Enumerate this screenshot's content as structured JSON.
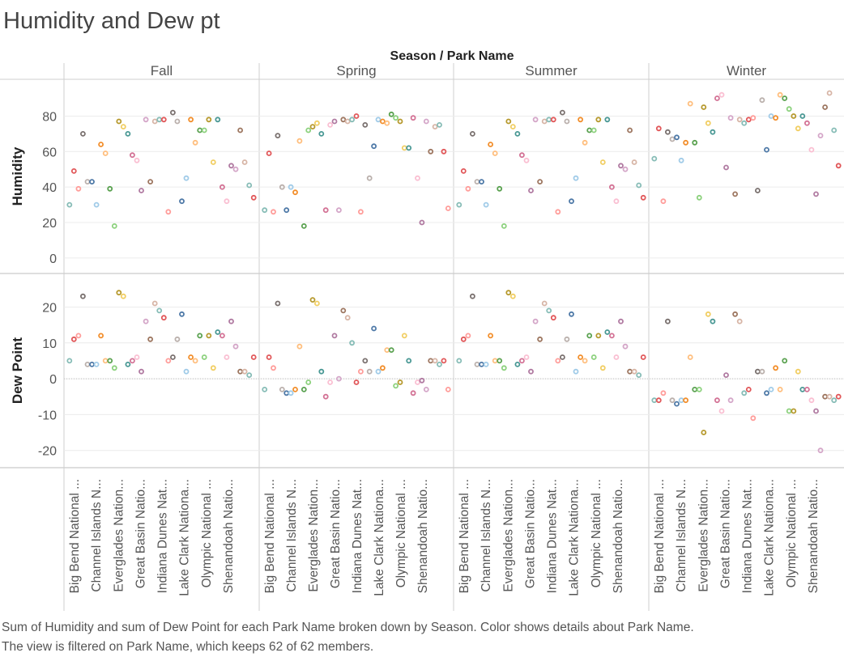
{
  "page": {
    "title": "Humidity and Dew pt",
    "caption_line1": "Sum of Humidity and sum of Dew Point for each Park Name broken down by Season.  Color shows details about Park Name.",
    "caption_line2": "The view is filtered on Park Name, which keeps 62 of 62 members."
  },
  "chart_data": {
    "type": "scatter",
    "header": "Season  /  Park Name",
    "columns": [
      "Fall",
      "Spring",
      "Summer",
      "Winter"
    ],
    "rows": [
      {
        "name": "Humidity",
        "ylim": [
          -6,
          98
        ],
        "ticks": [
          0,
          20,
          40,
          60,
          80
        ]
      },
      {
        "name": "Dew Point",
        "ylim": [
          -23,
          28
        ],
        "ticks": [
          -20,
          -10,
          0,
          10,
          20
        ]
      }
    ],
    "park_labels": [
      "Big Bend National ...",
      "Channel Islands N...",
      "Everglades Nation...",
      "Great Basin Natio...",
      "Indiana Dunes Nat...",
      "Lake Clark Nationa...",
      "Olympic National ...",
      "Shenandoah Natio..."
    ],
    "palette": [
      "#86bcb6",
      "#e15759",
      "#ff9d9a",
      "#79706e",
      "#bab0ac",
      "#4e79a7",
      "#a0cbe8",
      "#f28e2b",
      "#ffbe7d",
      "#59a14f",
      "#8cd17d",
      "#b6992d",
      "#f1ce63",
      "#499894",
      "#d37295",
      "#fabfd2",
      "#b07aa1",
      "#d4a6c8",
      "#9d7660",
      "#d7b5a6"
    ],
    "series": [
      {
        "season": "Fall",
        "humidity": [
          30,
          49,
          39,
          70,
          43,
          43,
          30,
          64,
          59,
          39,
          18,
          77,
          74,
          70,
          58,
          55,
          38,
          78,
          43,
          77,
          78,
          78,
          26,
          82,
          77,
          32,
          45,
          78,
          65,
          72,
          72,
          78,
          54,
          78,
          40,
          32,
          52,
          50,
          72,
          54,
          41,
          34
        ],
        "dew_point": [
          5,
          11,
          12,
          23,
          4,
          4,
          4,
          12,
          5,
          5,
          3,
          24,
          23,
          4,
          5,
          6,
          2,
          16,
          11,
          21,
          19,
          17,
          5,
          6,
          11,
          18,
          2,
          6,
          5,
          12,
          6,
          12,
          3,
          13,
          12,
          6,
          16,
          9,
          2,
          2,
          1,
          6
        ]
      },
      {
        "season": "Spring",
        "humidity": [
          27,
          59,
          26,
          69,
          40,
          27,
          40,
          37,
          66,
          18,
          72,
          74,
          76,
          70,
          27,
          75,
          77,
          27,
          78,
          77,
          78,
          80,
          26,
          75,
          45,
          63,
          78,
          77,
          76,
          81,
          79,
          77,
          62,
          62,
          79,
          45,
          20,
          77,
          60,
          74,
          75,
          60,
          28
        ],
        "dew_point": [
          -3,
          6,
          3,
          21,
          -3,
          -4,
          -4,
          -3,
          9,
          -3,
          -1,
          22,
          21,
          2,
          -5,
          -1,
          12,
          0,
          19,
          17,
          10,
          -1,
          2,
          5,
          2,
          14,
          2,
          3,
          8,
          8,
          -2,
          -1,
          12,
          5,
          -4,
          -1,
          -0.5,
          -3,
          5,
          5,
          4,
          5,
          -3
        ]
      },
      {
        "season": "Summer",
        "humidity": [
          30,
          49,
          39,
          70,
          43,
          43,
          30,
          64,
          59,
          39,
          18,
          77,
          74,
          70,
          58,
          55,
          38,
          78,
          43,
          77,
          78,
          78,
          26,
          82,
          77,
          32,
          45,
          78,
          65,
          72,
          72,
          78,
          54,
          78,
          40,
          32,
          52,
          50,
          72,
          54,
          41,
          34
        ],
        "dew_point": [
          5,
          11,
          12,
          23,
          4,
          4,
          4,
          12,
          5,
          5,
          3,
          24,
          23,
          4,
          5,
          6,
          2,
          16,
          11,
          21,
          19,
          17,
          5,
          6,
          11,
          18,
          2,
          6,
          5,
          12,
          6,
          12,
          3,
          13,
          12,
          6,
          16,
          9,
          2,
          2,
          1,
          6
        ]
      },
      {
        "season": "Winter",
        "humidity": [
          56,
          73,
          32,
          71,
          67,
          68,
          55,
          65,
          87,
          65,
          34,
          85,
          76,
          71,
          90,
          92,
          51,
          79,
          36,
          78,
          76,
          78,
          79,
          38,
          89,
          61,
          80,
          79,
          92,
          90,
          84,
          80,
          73,
          80,
          76,
          61,
          36,
          69,
          85,
          93,
          72,
          52
        ],
        "dew_point": [
          -6,
          -6,
          -4,
          16,
          -6,
          -7,
          -6,
          -6,
          6,
          -3,
          -3,
          -15,
          18,
          16,
          -6,
          -9,
          1,
          -6,
          18,
          16,
          -4,
          -3,
          -11,
          2,
          2,
          -4,
          -3,
          3,
          -3,
          5,
          -9,
          -9,
          2,
          -3,
          -3,
          -6,
          -9,
          -20,
          -5,
          -5,
          -6,
          -5
        ]
      }
    ]
  }
}
